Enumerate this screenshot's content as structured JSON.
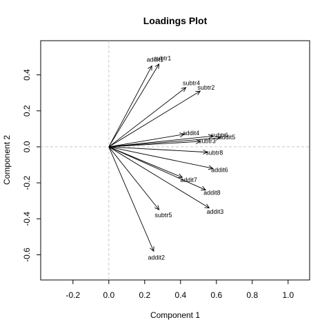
{
  "chart_data": {
    "type": "scatter",
    "title": "Loadings Plot",
    "xlabel": "Component 1",
    "ylabel": "Component 2",
    "xlim": [
      -0.38,
      1.12
    ],
    "ylim": [
      -0.74,
      0.59
    ],
    "x_ticks": [
      -0.2,
      0.0,
      0.2,
      0.4,
      0.6,
      0.8,
      1.0
    ],
    "x_tick_labels": [
      "-0.2",
      "0.0",
      "0.2",
      "0.4",
      "0.6",
      "0.8",
      "1.0"
    ],
    "y_ticks": [
      -0.6,
      -0.4,
      -0.2,
      0.0,
      0.2,
      0.4
    ],
    "y_tick_labels": [
      "-0.6",
      "-0.4",
      "-0.2",
      "0.0",
      "0.2",
      "0.4"
    ],
    "reference_lines": {
      "x": 0,
      "y": 0,
      "style": "dashed",
      "color": "#c8c8c8"
    },
    "grid": false,
    "arrows": [
      {
        "label": "addit1",
        "x": 0.24,
        "y": 0.45
      },
      {
        "label": "subtr1",
        "x": 0.28,
        "y": 0.46
      },
      {
        "label": "subtr4",
        "x": 0.43,
        "y": 0.33
      },
      {
        "label": "subtr2",
        "x": 0.51,
        "y": 0.31
      },
      {
        "label": "addit4",
        "x": 0.42,
        "y": 0.07
      },
      {
        "label": "subtr6",
        "x": 0.58,
        "y": 0.06
      },
      {
        "label": "subtr3",
        "x": 0.51,
        "y": 0.03
      },
      {
        "label": "addit5",
        "x": 0.62,
        "y": 0.05
      },
      {
        "label": "subtr8",
        "x": 0.55,
        "y": -0.03
      },
      {
        "label": "addit6",
        "x": 0.58,
        "y": -0.12
      },
      {
        "label": "addit7",
        "x": 0.41,
        "y": -0.17
      },
      {
        "label": "addit8",
        "x": 0.54,
        "y": -0.24
      },
      {
        "label": "addit3",
        "x": 0.56,
        "y": -0.34
      },
      {
        "label": "subtr5",
        "x": 0.28,
        "y": -0.35
      },
      {
        "label": "addit2",
        "x": 0.25,
        "y": -0.58
      }
    ],
    "label_offsets_note": ""
  }
}
